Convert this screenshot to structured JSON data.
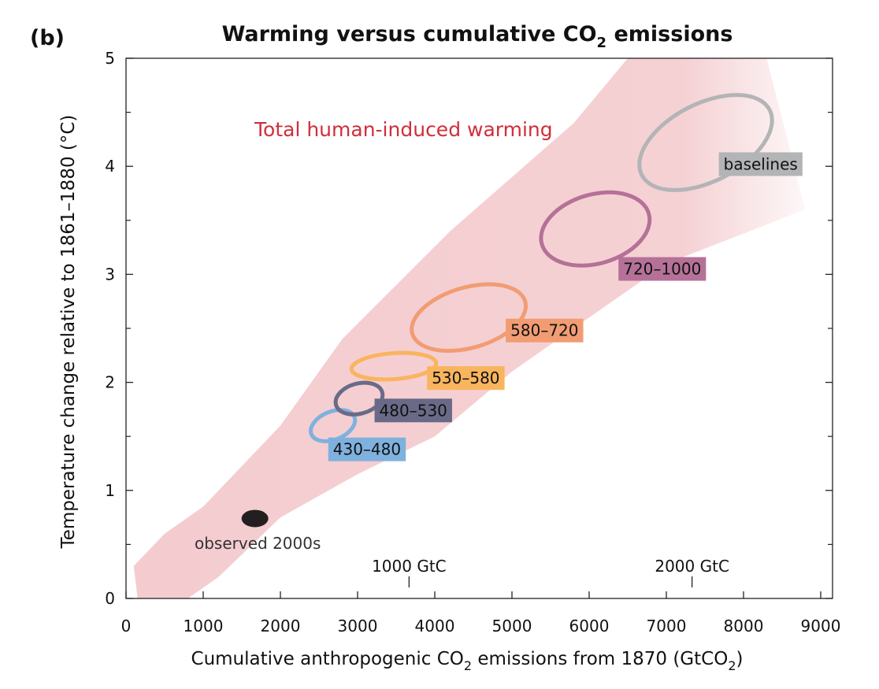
{
  "panel_label": "(b)",
  "title": {
    "prefix": "Warming versus cumulative CO",
    "subscript": "2",
    "suffix": " emissions"
  },
  "xlabel": {
    "prefix": "Cumulative anthropogenic CO",
    "subscript": "2",
    "middle": " emissions from 1870  (GtCO",
    "subscript2": "2",
    "suffix": ")"
  },
  "ylabel": "Temperature change relative to 1861–1880 (°C)",
  "chart_data": {
    "type": "scatter",
    "xlim": [
      0,
      9000
    ],
    "ylim": [
      0,
      5
    ],
    "xticks": [
      "0",
      "1000",
      "2000",
      "3000",
      "4000",
      "5000",
      "6000",
      "7000",
      "8000",
      "9000"
    ],
    "xtick_values": [
      0,
      1000,
      2000,
      3000,
      4000,
      5000,
      6000,
      7000,
      8000,
      9000
    ],
    "yticks": [
      "0",
      "1",
      "2",
      "3",
      "4",
      "5"
    ],
    "ytick_values": [
      0,
      1,
      2,
      3,
      4,
      5
    ],
    "secondary_x_ticks": [
      {
        "label": "1000 GtC",
        "value": 3667
      },
      {
        "label": "2000 GtC",
        "value": 7333
      }
    ],
    "band": {
      "name": "Total human-induced warming",
      "color": "#f4cccf",
      "upper": [
        [
          100,
          0.3
        ],
        [
          500,
          0.6
        ],
        [
          1000,
          0.85
        ],
        [
          2000,
          1.6
        ],
        [
          2800,
          2.4
        ],
        [
          4200,
          3.4
        ],
        [
          5800,
          4.4
        ],
        [
          6500,
          5.0
        ],
        [
          8300,
          5.0
        ]
      ],
      "lower": [
        [
          8800,
          3.6
        ],
        [
          7000,
          3.1
        ],
        [
          5000,
          2.1
        ],
        [
          4000,
          1.5
        ],
        [
          3000,
          1.15
        ],
        [
          2000,
          0.75
        ],
        [
          1200,
          0.2
        ],
        [
          200,
          -0.3
        ]
      ]
    },
    "observed": {
      "label": "observed 2000s",
      "x": 1670,
      "y": 0.74,
      "color": "#231f20"
    },
    "series": [
      {
        "name": "430–480",
        "color": "#7fb1de",
        "cx": 2680,
        "cy": 1.6,
        "rx": 300,
        "ry": 0.13,
        "angle": 22
      },
      {
        "name": "480–530",
        "color": "#6a6a88",
        "cx": 3020,
        "cy": 1.85,
        "rx": 310,
        "ry": 0.14,
        "angle": 15
      },
      {
        "name": "530–580",
        "color": "#f9b45e",
        "cx": 3470,
        "cy": 2.15,
        "rx": 550,
        "ry": 0.12,
        "angle": 4
      },
      {
        "name": "580–720",
        "color": "#f29c73",
        "cx": 4440,
        "cy": 2.6,
        "rx": 760,
        "ry": 0.28,
        "angle": 16
      },
      {
        "name": "720–1000",
        "color": "#b57197",
        "cx": 6080,
        "cy": 3.42,
        "rx": 720,
        "ry": 0.32,
        "angle": 16
      },
      {
        "name": "baselines",
        "color": "#b3b4b6",
        "cx": 7510,
        "cy": 4.22,
        "rx": 930,
        "ry": 0.36,
        "angle": 27
      }
    ]
  }
}
